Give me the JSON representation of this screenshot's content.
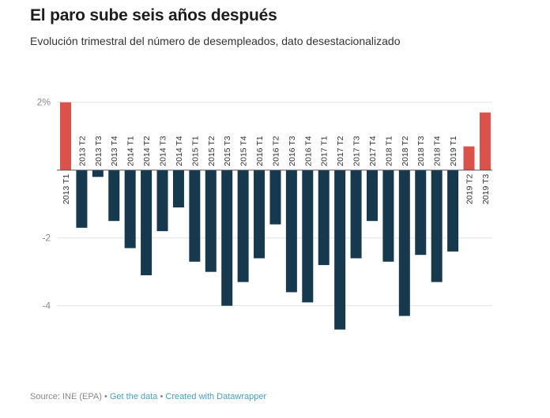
{
  "header": {
    "title": "El paro sube seis años después",
    "subtitle": "Evolución trimestral del número de desempleados, dato desestacionalizado"
  },
  "footer": {
    "source": "Source: INE (EPA)",
    "separator": " • ",
    "get_data": "Get the data",
    "created_with": "Created with Datawrapper"
  },
  "colors": {
    "positive": "#d9534a",
    "negative": "#17394d",
    "grid": "#e3e3e3",
    "baseline": "#555555"
  },
  "chart_data": {
    "type": "bar",
    "title": "El paro sube seis años después",
    "subtitle": "Evolución trimestral del número de desempleados, dato desestacionalizado",
    "xlabel": "",
    "ylabel": "",
    "unit": "%",
    "ylim": [
      -5,
      2
    ],
    "yticks": [
      {
        "value": 2,
        "label": "2%"
      },
      {
        "value": -2,
        "label": "-2"
      },
      {
        "value": -4,
        "label": "-4"
      }
    ],
    "grid": true,
    "categories": [
      "2013 T1",
      "2013 T2",
      "2013 T3",
      "2013 T4",
      "2014 T1",
      "2014 T2",
      "2014 T3",
      "2014 T4",
      "2015 T1",
      "2015 T2",
      "2015 T3",
      "2015 T4",
      "2016 T1",
      "2016 T2",
      "2016 T3",
      "2016 T4",
      "2017 T1",
      "2017 T2",
      "2017 T3",
      "2017 T4",
      "2018 T1",
      "2018 T2",
      "2018 T3",
      "2018 T4",
      "2019 T1",
      "2019 T2",
      "2019 T3"
    ],
    "values": [
      2.0,
      -1.7,
      -0.2,
      -1.5,
      -2.3,
      -3.1,
      -1.8,
      -1.1,
      -2.7,
      -3.0,
      -4.0,
      -3.3,
      -2.6,
      -1.6,
      -3.6,
      -3.9,
      -2.8,
      -4.7,
      -2.6,
      -1.5,
      -2.7,
      -4.3,
      -2.5,
      -3.3,
      -2.4,
      0.7,
      1.7
    ]
  }
}
